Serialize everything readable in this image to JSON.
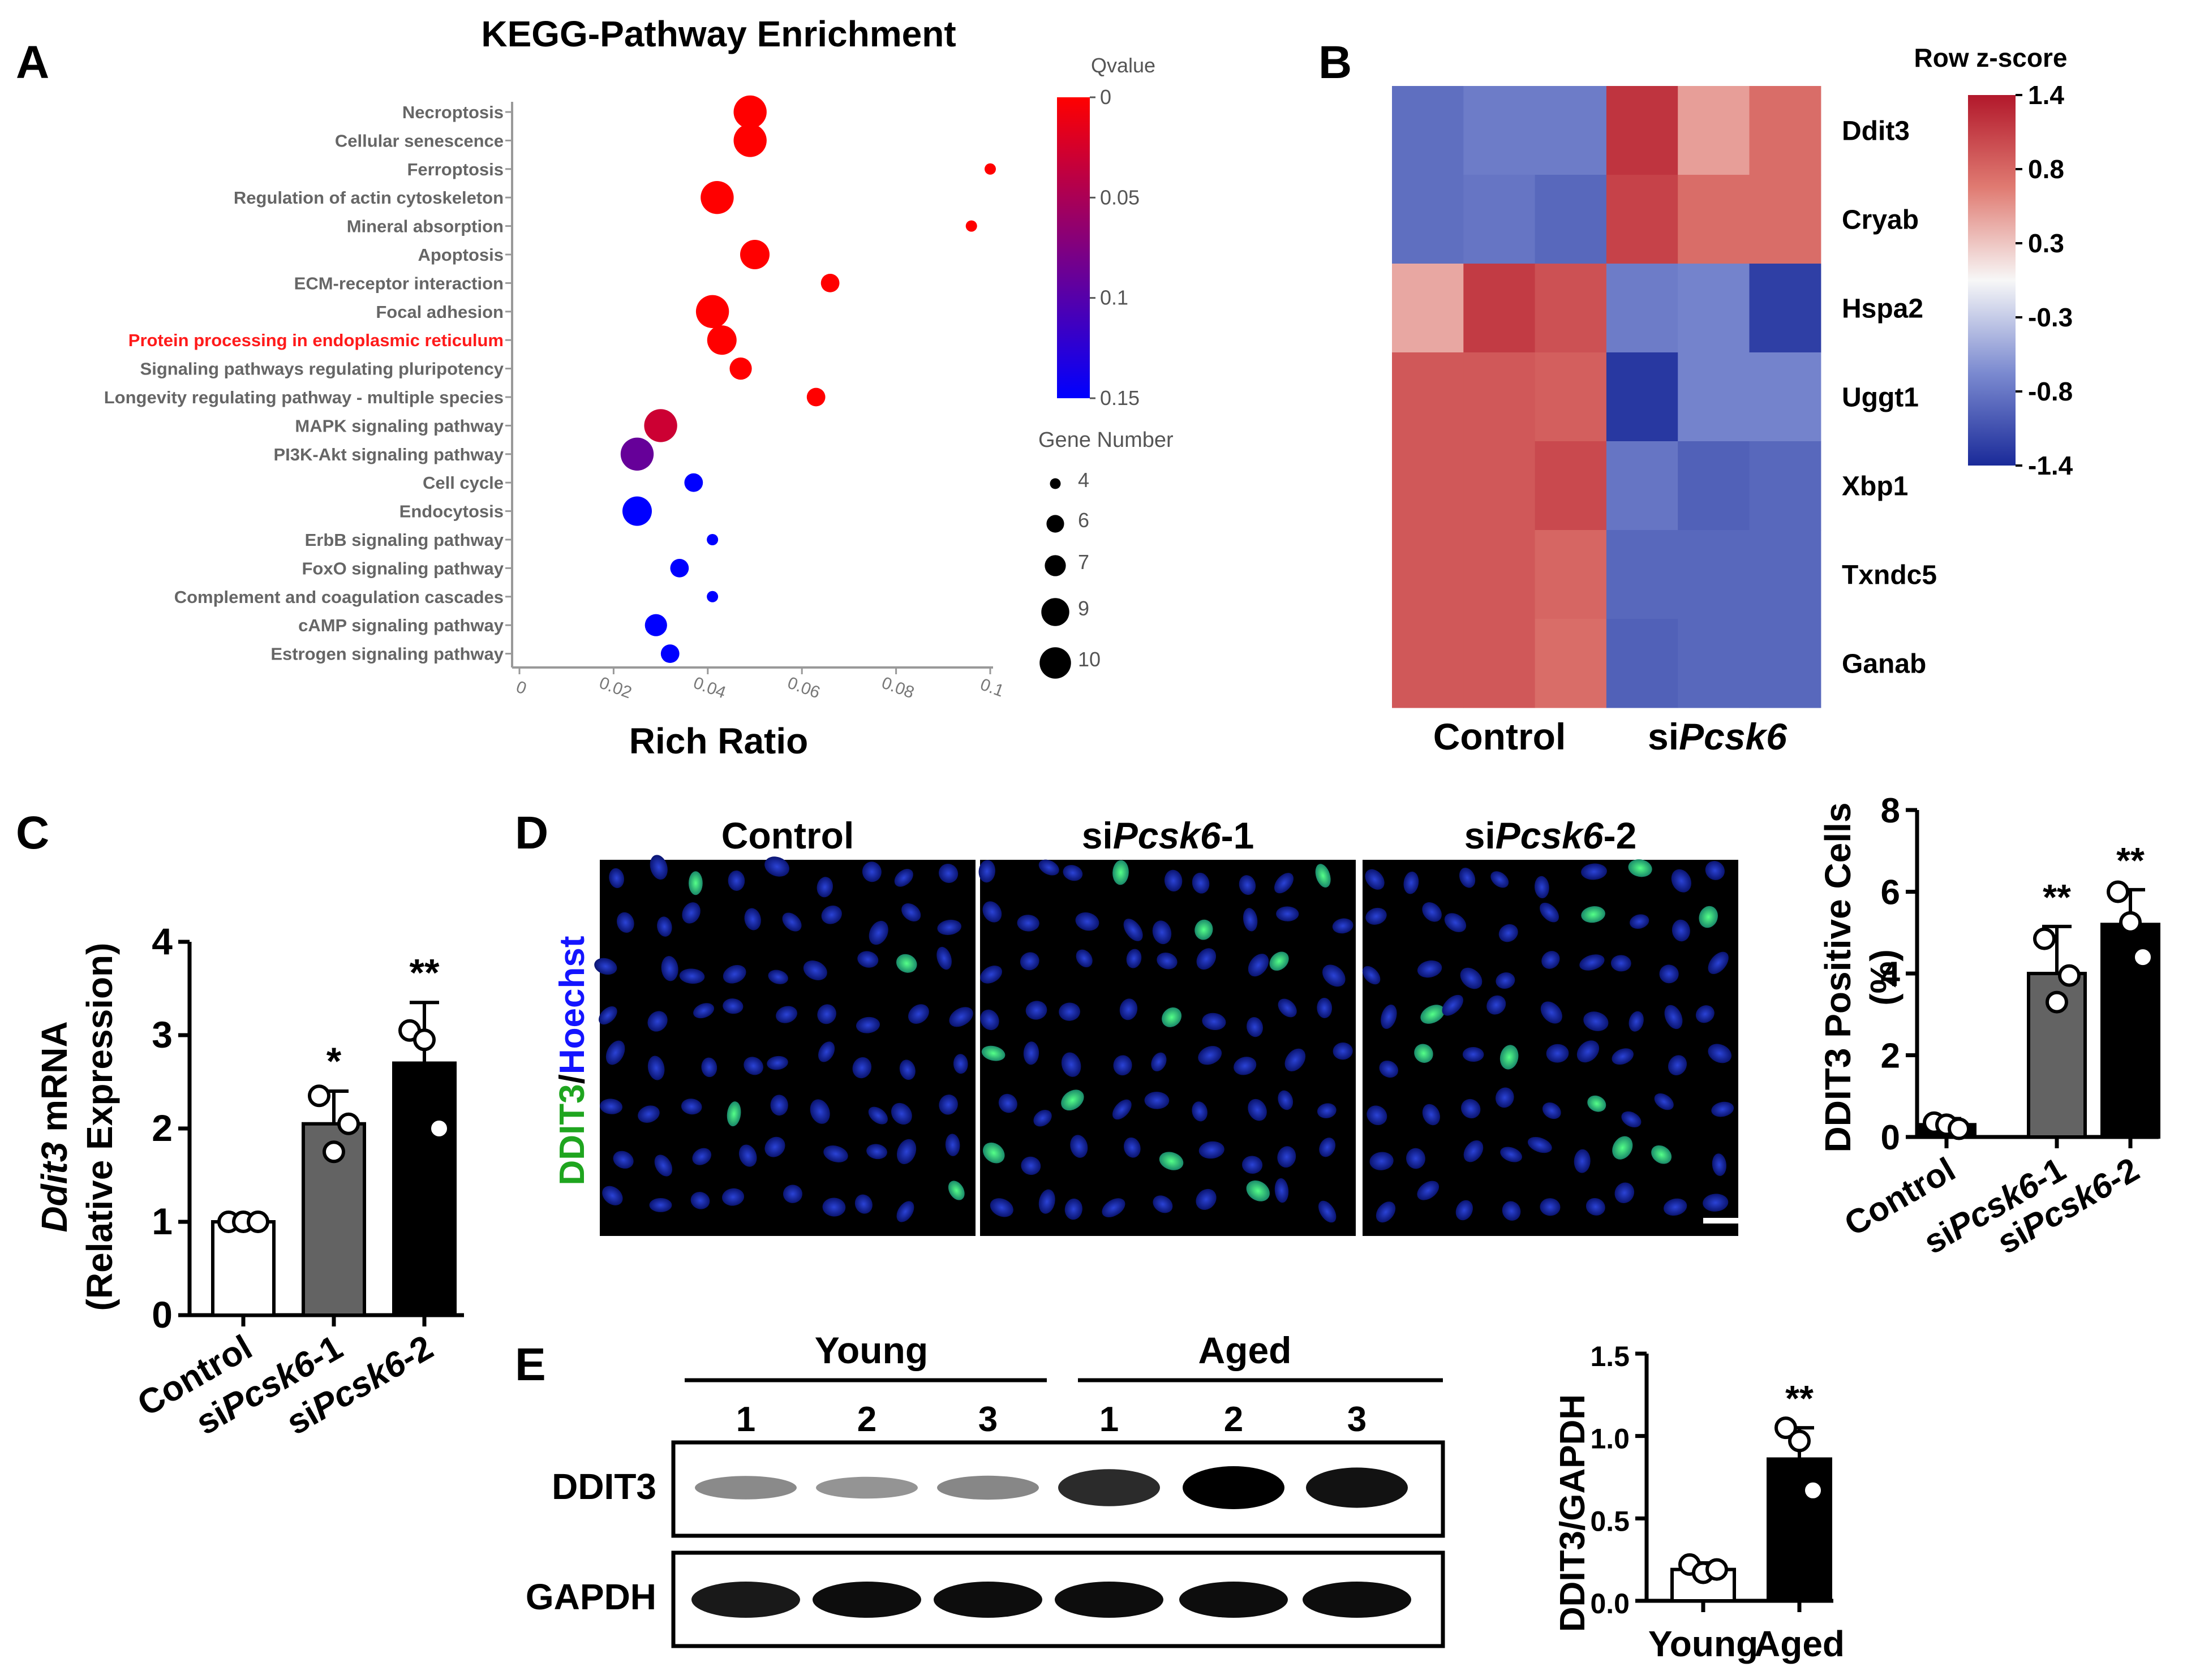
{
  "chart_data": [
    {
      "panel": "A",
      "type": "scatter",
      "title": "KEGG-Pathway Enrichment",
      "xlabel": "Rich Ratio",
      "xlim": [
        0,
        0.1
      ],
      "x_ticks": [
        "0",
        "0.02",
        "0.04",
        "0.06",
        "0.08",
        "0.1"
      ],
      "highlight_color": "#ff1a1a",
      "points": [
        {
          "label": "Necroptosis",
          "x": 0.049,
          "q": 0.0,
          "n": 10
        },
        {
          "label": "Cellular senescence",
          "x": 0.049,
          "q": 0.0,
          "n": 10
        },
        {
          "label": "Ferroptosis",
          "x": 0.1,
          "q": 0.0,
          "n": 4
        },
        {
          "label": "Regulation of actin cytoskeleton",
          "x": 0.042,
          "q": 0.0,
          "n": 10
        },
        {
          "label": "Mineral absorption",
          "x": 0.096,
          "q": 0.0,
          "n": 4
        },
        {
          "label": "Apoptosis",
          "x": 0.05,
          "q": 0.0,
          "n": 9
        },
        {
          "label": "ECM-receptor interaction",
          "x": 0.066,
          "q": 0.0,
          "n": 6
        },
        {
          "label": "Focal adhesion",
          "x": 0.041,
          "q": 0.0,
          "n": 10
        },
        {
          "label": "Protein processing in endoplasmic reticulum",
          "x": 0.043,
          "q": 0.0,
          "n": 9,
          "highlight": true
        },
        {
          "label": "Signaling pathways regulating pluripotency",
          "x": 0.047,
          "q": 0.0,
          "n": 7
        },
        {
          "label": "Longevity regulating pathway - multiple species",
          "x": 0.063,
          "q": 0.0,
          "n": 6
        },
        {
          "label": "MAPK signaling pathway",
          "x": 0.03,
          "q": 0.03,
          "n": 10
        },
        {
          "label": "PI3K-Akt signaling pathway",
          "x": 0.025,
          "q": 0.09,
          "n": 10
        },
        {
          "label": "Cell cycle",
          "x": 0.037,
          "q": 0.15,
          "n": 6
        },
        {
          "label": "Endocytosis",
          "x": 0.025,
          "q": 0.15,
          "n": 9
        },
        {
          "label": "ErbB signaling pathway",
          "x": 0.041,
          "q": 0.15,
          "n": 4
        },
        {
          "label": "FoxO signaling pathway",
          "x": 0.034,
          "q": 0.15,
          "n": 6
        },
        {
          "label": "Complement and coagulation cascades",
          "x": 0.041,
          "q": 0.15,
          "n": 4
        },
        {
          "label": "cAMP signaling pathway",
          "x": 0.029,
          "q": 0.15,
          "n": 7
        },
        {
          "label": "Estrogen signaling pathway",
          "x": 0.032,
          "q": 0.15,
          "n": 6
        }
      ],
      "colorbar": {
        "title": "Qvalue",
        "ticks": [
          "0",
          "0.05",
          "0.1",
          "0.15"
        ],
        "range": [
          0,
          0.15
        ]
      },
      "size_legend": {
        "title": "Gene Number",
        "values": [
          4,
          6,
          7,
          9,
          10
        ]
      }
    },
    {
      "panel": "B",
      "type": "heatmap",
      "genes": [
        "Ddit3",
        "Cryab",
        "Hspa2",
        "Uggt1",
        "Xbp1",
        "Txndc5",
        "Ganab"
      ],
      "group_labels": [
        "Control",
        "si",
        "Pcsk6"
      ],
      "matrix": [
        [
          -0.9,
          -0.8,
          -0.8,
          1.2,
          0.5,
          0.8
        ],
        [
          -0.9,
          -0.85,
          -0.95,
          1.1,
          0.8,
          0.8
        ],
        [
          0.45,
          1.15,
          1.0,
          -0.8,
          -0.75,
          -1.25
        ],
        [
          0.95,
          0.95,
          0.9,
          -1.3,
          -0.75,
          -0.75
        ],
        [
          0.95,
          0.95,
          1.05,
          -0.85,
          -1.0,
          -0.95
        ],
        [
          0.95,
          0.95,
          0.85,
          -0.95,
          -0.95,
          -0.95
        ],
        [
          0.95,
          0.95,
          0.8,
          -1.0,
          -0.95,
          -0.95
        ]
      ],
      "colorbar": {
        "title": "Row z-score",
        "ticks": [
          "1.4",
          "0.8",
          "0.3",
          "-0.3",
          "-0.8",
          "-1.4"
        ],
        "range": [
          -1.4,
          1.4
        ]
      }
    },
    {
      "panel": "C",
      "type": "bar",
      "ylabel_gene": "Ddit3",
      "ylabel_rest": " mRNA",
      "ylabel_sub": "(Relative Expression)",
      "ylim": [
        0,
        4
      ],
      "y_ticks": [
        "0",
        "1",
        "2",
        "3",
        "4"
      ],
      "categories": [
        "Control",
        "siPcsk6-1",
        "siPcsk6-2"
      ],
      "cat_parts": [
        [
          "",
          "Control",
          ""
        ],
        [
          "si",
          "Pcsk6",
          "-1"
        ],
        [
          "si",
          "Pcsk6",
          "-2"
        ]
      ],
      "values": [
        1.0,
        2.05,
        2.7
      ],
      "errors": [
        0.0,
        0.35,
        0.65
      ],
      "points": [
        [
          1.0,
          1.0,
          1.0
        ],
        [
          2.35,
          1.75,
          2.05
        ],
        [
          3.05,
          2.95,
          2.0
        ]
      ],
      "significance": [
        "",
        "*",
        "**"
      ],
      "fills": [
        "#ffffff",
        "#636363",
        "#000000"
      ]
    },
    {
      "panel": "D",
      "type": "bar",
      "ylabel": "DDIT3 Positive Cells",
      "ylabel_sub": "(%)",
      "ylim": [
        0,
        8
      ],
      "y_ticks": [
        "0",
        "2",
        "4",
        "6",
        "8"
      ],
      "categories": [
        "Control",
        "siPcsk6-1",
        "siPcsk6-2"
      ],
      "cat_parts": [
        [
          "",
          "Control",
          ""
        ],
        [
          "si",
          "Pcsk6",
          "-1"
        ],
        [
          "si",
          "Pcsk6",
          "-2"
        ]
      ],
      "values": [
        0.3,
        4.0,
        5.2
      ],
      "errors": [
        0.15,
        1.15,
        0.85
      ],
      "points": [
        [
          0.35,
          0.3,
          0.2
        ],
        [
          4.85,
          3.3,
          3.95
        ],
        [
          6.0,
          5.25,
          4.4
        ]
      ],
      "significance": [
        "",
        "**",
        "**"
      ],
      "fills": [
        "#000000",
        "#636363",
        "#000000"
      ],
      "image_titles": [
        [
          "",
          "Control",
          ""
        ],
        [
          "si",
          "Pcsk6",
          "-1"
        ],
        [
          "si",
          "Pcsk6",
          "-2"
        ]
      ],
      "stain_label": [
        "DDIT3",
        "/",
        "Hoechst"
      ],
      "stain_colors": [
        "#1fa51f",
        "#000000",
        "#1414ff"
      ]
    },
    {
      "panel": "E",
      "type": "bar",
      "ylabel": "DDIT3/GAPDH",
      "ylim": [
        0,
        1.5
      ],
      "y_ticks": [
        "0.0",
        "0.5",
        "1.0",
        "1.5"
      ],
      "categories": [
        "Young",
        "Aged"
      ],
      "values": [
        0.19,
        0.86
      ],
      "errors": [
        0.04,
        0.19
      ],
      "points": [
        [
          0.22,
          0.17,
          0.19
        ],
        [
          1.05,
          0.97,
          0.67
        ]
      ],
      "significance": [
        "",
        "**"
      ],
      "fills": [
        "#ffffff",
        "#000000"
      ],
      "blot": {
        "groups": [
          "Young",
          "Aged"
        ],
        "lanes": [
          "1",
          "2",
          "3",
          "1",
          "2",
          "3"
        ],
        "rows": [
          "DDIT3",
          "GAPDH"
        ],
        "ddit3_intensity": [
          0.28,
          0.22,
          0.3,
          0.78,
          1.0,
          0.9
        ],
        "gapdh_intensity": [
          0.9,
          0.95,
          0.95,
          0.95,
          0.95,
          0.95
        ]
      }
    }
  ],
  "panel_letters": [
    "A",
    "B",
    "C",
    "D",
    "E"
  ]
}
